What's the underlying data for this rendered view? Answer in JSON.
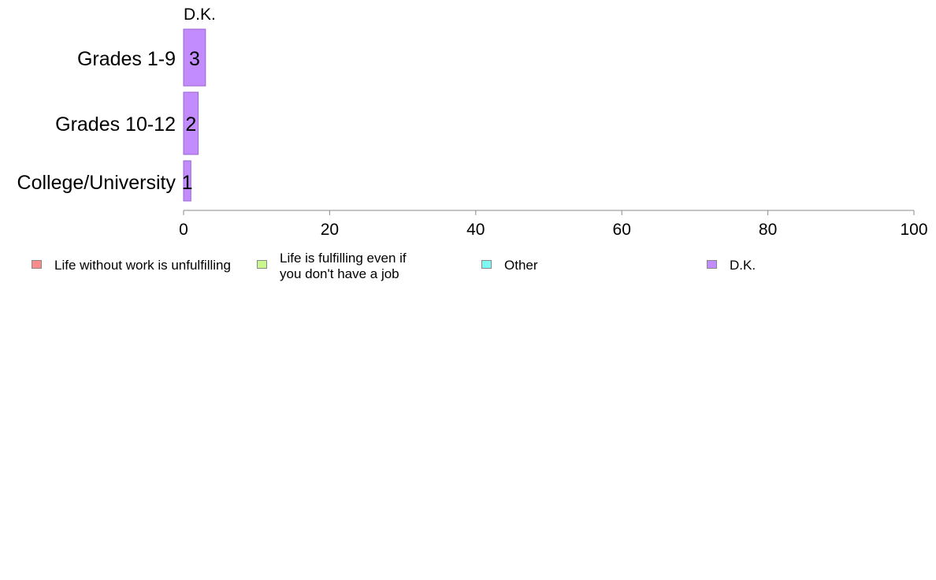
{
  "chart_data": {
    "type": "bar",
    "orientation": "horizontal",
    "title": "D.K.",
    "categories": [
      "Grades 1-9",
      "Grades 10-12",
      "College/University"
    ],
    "series": [
      {
        "name": "D.K.",
        "values": [
          3,
          2,
          1
        ],
        "color": "#c28cff"
      }
    ],
    "data_labels": [
      "3",
      "2",
      "1"
    ],
    "xlim": [
      0,
      100
    ],
    "xticks": [
      0,
      20,
      40,
      60,
      80,
      100
    ],
    "xtick_labels": [
      "0",
      "20",
      "40",
      "60",
      "80",
      "100"
    ],
    "grid": false,
    "legend_position": "bottom",
    "legend": [
      {
        "label": "Life without work is unfulfilling",
        "color": "#f88b8b"
      },
      {
        "label": "Life is fulfilling even if you don't have a job",
        "color": "#c9f68d"
      },
      {
        "label": "Other",
        "color": "#7ff8f2"
      },
      {
        "label": "D.K.",
        "color": "#c28cff"
      }
    ]
  }
}
